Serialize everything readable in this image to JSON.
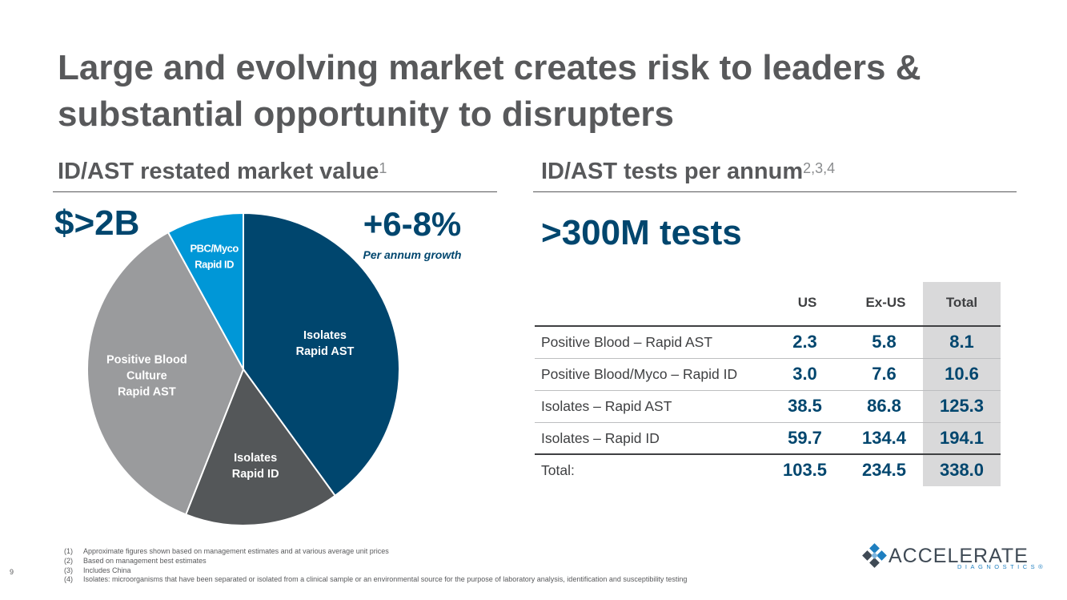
{
  "slide": {
    "title_line1": "Large and evolving market creates risk to leaders &",
    "title_line2": "substantial opportunity to disrupters",
    "page_number": "9"
  },
  "left": {
    "heading": "ID/AST restated market value",
    "heading_sup": "1",
    "market_value": "$>2B",
    "growth": "+6-8%",
    "growth_label": "Per annum growth"
  },
  "right": {
    "heading": "ID/AST tests per annum",
    "heading_sup": "2,3,4",
    "tests_headline": ">300M tests"
  },
  "chart_data": {
    "type": "pie",
    "title": "ID/AST restated market value",
    "labels": [
      "Isolates Rapid AST",
      "Isolates Rapid ID",
      "Positive Blood Culture Rapid AST",
      "PBC/Myco Rapid ID"
    ],
    "label_lines": [
      [
        "Isolates",
        "Rapid AST"
      ],
      [
        "Isolates",
        "Rapid ID"
      ],
      [
        "Positive Blood",
        "Culture",
        "Rapid AST"
      ],
      [
        "PBC/Myco",
        "Rapid ID"
      ]
    ],
    "values": [
      40,
      16,
      36,
      8
    ],
    "colors": [
      "#00466e",
      "#545759",
      "#9a9b9d",
      "#0097d7"
    ],
    "start_angle_deg": 0,
    "direction": "clockwise"
  },
  "table": {
    "columns": [
      "US",
      "Ex-US",
      "Total"
    ],
    "rows": [
      {
        "label": "Positive Blood – Rapid AST",
        "us": "2.3",
        "exus": "5.8",
        "total": "8.1"
      },
      {
        "label": "Positive Blood/Myco – Rapid ID",
        "us": "3.0",
        "exus": "7.6",
        "total": "10.6"
      },
      {
        "label": "Isolates – Rapid AST",
        "us": "38.5",
        "exus": "86.8",
        "total": "125.3"
      },
      {
        "label": "Isolates – Rapid ID",
        "us": "59.7",
        "exus": "134.4",
        "total": "194.1"
      }
    ],
    "total_row": {
      "label": "Total:",
      "us": "103.5",
      "exus": "234.5",
      "total": "338.0"
    }
  },
  "footnotes": [
    {
      "num": "(1)",
      "text": "Approximate figures shown based on management estimates and at various average unit prices"
    },
    {
      "num": "(2)",
      "text": "Based on management best estimates"
    },
    {
      "num": "(3)",
      "text": "Includes China"
    },
    {
      "num": "(4)",
      "text": "Isolates:  microorganisms that have been separated or isolated from a clinical sample or an environmental source for the purpose of laboratory analysis, identification and susceptibility testing"
    }
  ],
  "logo": {
    "name": "ACCELERATE",
    "sub": "DIAGNOSTICS®",
    "colors": [
      "#1f7fc0",
      "#3f4a55"
    ]
  }
}
